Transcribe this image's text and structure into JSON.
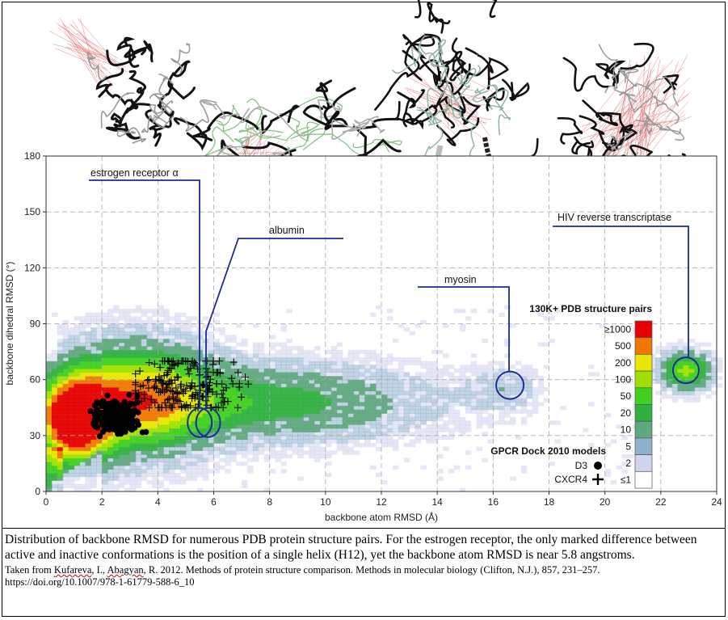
{
  "chart_data": {
    "type": "heatmap",
    "xlabel": "backbone atom RMSD (Å)",
    "ylabel": "backbone dihedral RMSD (°)",
    "xlim": [
      0,
      24
    ],
    "ylim": [
      0,
      180
    ],
    "xticks": [
      0,
      2,
      4,
      6,
      8,
      10,
      12,
      14,
      16,
      18,
      20,
      22,
      24
    ],
    "yticks": [
      0,
      30,
      60,
      90,
      120,
      150,
      180
    ],
    "grid": true,
    "legend": {
      "title": "130K+ PDB structure pairs",
      "placement": "right",
      "bins": [
        {
          "label": "≥1000",
          "color": "#e60000"
        },
        {
          "label": "500",
          "color": "#f07800"
        },
        {
          "label": "200",
          "color": "#e8e600"
        },
        {
          "label": "100",
          "color": "#a0e000"
        },
        {
          "label": "50",
          "color": "#40d020"
        },
        {
          "label": "20",
          "color": "#30b040"
        },
        {
          "label": "10",
          "color": "#60a880"
        },
        {
          "label": "5",
          "color": "#90b0cc"
        },
        {
          "label": "2",
          "color": "#d0d4ee"
        },
        {
          "label": "≤1",
          "color": "#ffffff"
        }
      ]
    },
    "models_legend": {
      "title": "GPCR Dock 2010 models",
      "items": [
        {
          "label": "D3",
          "marker": "circle"
        },
        {
          "label": "CXCR4",
          "marker": "plus"
        }
      ]
    },
    "annotations": [
      {
        "label": "estrogen receptor α",
        "x": 5.5,
        "y": 37
      },
      {
        "label": "albumin",
        "x": 5.8,
        "y": 37
      },
      {
        "label": "myosin",
        "x": 16.6,
        "y": 57
      },
      {
        "label": "HIV reverse transcriptase",
        "x": 22.9,
        "y": 65
      }
    ],
    "series": [
      {
        "name": "D3",
        "marker": "circle",
        "cluster": {
          "x_range": [
            1.6,
            3.4
          ],
          "y_range": [
            30,
            50
          ]
        }
      },
      {
        "name": "CXCR4",
        "marker": "plus",
        "cluster": {
          "x_range": [
            3.2,
            7.8
          ],
          "y_range": [
            45,
            70
          ]
        }
      }
    ]
  },
  "caption": {
    "main": "Distribution of backbone RMSD for numerous PDB protein structure pairs. For the estrogen receptor, the only marked difference between active and inactive conformations is the position of a single helix (H12), yet the backbone atom RMSD is near 5.8 angstroms.",
    "cite_prefix": "Taken from ",
    "cite_author1": "Kufareva",
    "cite_mid": ", I., ",
    "cite_author2": "Abagyan",
    "cite_rest": ", R. 2012. Methods of protein structure comparison. Methods in molecular biology (Clifton, N.J.), 857, 231–257. https://doi.org/10.1007/978-1-61779-588-6_10"
  }
}
